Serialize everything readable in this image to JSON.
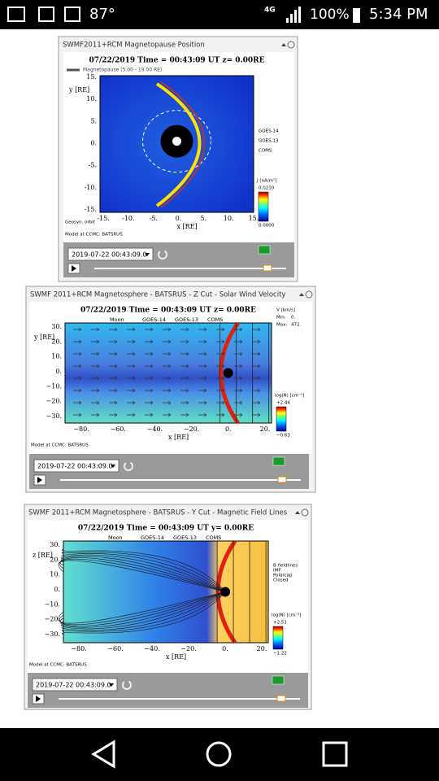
{
  "status_bar": {
    "temperature": "87°",
    "network": "4G",
    "battery": "100%",
    "time": "5:34 PM"
  },
  "widgets": [
    {
      "title": "SWMF2011+RCM Magnetopause Position",
      "plot_title": "07/22/2019 Time = 00:43:09 UT z= 0.00RE",
      "legend": [
        "Magnetopause (5.00 - 19.00 RE)"
      ],
      "y_label": "y [RE]",
      "x_label": "x [RE]",
      "y_ticks": [
        "15.",
        "10.",
        "5.",
        "0.",
        "-5.",
        "-10.",
        "-15."
      ],
      "x_ticks": [
        "-15.",
        "-10.",
        "-5.",
        "0.",
        "5.",
        "10.",
        "15."
      ],
      "notes": [
        "Geosyn. orbit"
      ],
      "markers": [
        "GOES-14",
        "GOES-13",
        "COMS"
      ],
      "colorbar": {
        "label": "J [nA/m²]",
        "max": "0.0210",
        "min": "0.0000"
      },
      "credit": "Model at CCMC: BATSRUS",
      "timestamp": "2019-07-22 00:43:09.0"
    },
    {
      "title": "SWMF 2011+RCM Magnetosphere - BATSRUS - Z Cut - Solar Wind Velocity",
      "plot_title": "07/22/2019 Time = 00:43:09 UT z= 0.00RE",
      "legend": [
        "Moon",
        "GOES-14",
        "GOES-13",
        "COMS"
      ],
      "y_label": "y [RE]",
      "x_label": "x [RE]",
      "y_ticks": [
        "30.",
        "20.",
        "10.",
        "0.",
        "−10.",
        "−20.",
        "−30."
      ],
      "x_ticks": [
        "−80.",
        "−60.",
        "−40.",
        "−20.",
        "0.",
        "20."
      ],
      "notes": [
        "V [km/s]",
        "Min:",
        "0.",
        "Max:",
        "472."
      ],
      "markers": [],
      "colorbar": {
        "label": "log(N) [cm⁻³]",
        "max": "+2.44",
        "min": "−0.63"
      },
      "credit": "Model at CCMC: BATSRUS",
      "timestamp": "2019-07-22 00:43:09.0"
    },
    {
      "title": "SWMF 2011+RCM Magnetosphere - BATSRUS - Y Cut - Magnetic Field Lines",
      "plot_title": "07/22/2019 Time = 00:43:09 UT y= 0.00RE",
      "legend": [
        "Moon",
        "GOES-14",
        "GOES-13",
        "COMS"
      ],
      "y_label": "z [RE]",
      "x_label": "x [RE]",
      "y_ticks": [
        "30.",
        "20.",
        "10.",
        "0.",
        "−10.",
        "−20.",
        "−30."
      ],
      "x_ticks": [
        "−80.",
        "−60.",
        "−40.",
        "−20.",
        "0.",
        "20."
      ],
      "notes": [
        "B fieldlines",
        "IMF",
        "Polarcap",
        "Closed"
      ],
      "markers": [],
      "colorbar": {
        "label": "log(N) [cm⁻³]",
        "max": "+2.51",
        "min": "−1.22"
      },
      "credit": "Model at CCMC: BATSRUS",
      "timestamp": "2019-07-22 00:43:09.0"
    }
  ]
}
